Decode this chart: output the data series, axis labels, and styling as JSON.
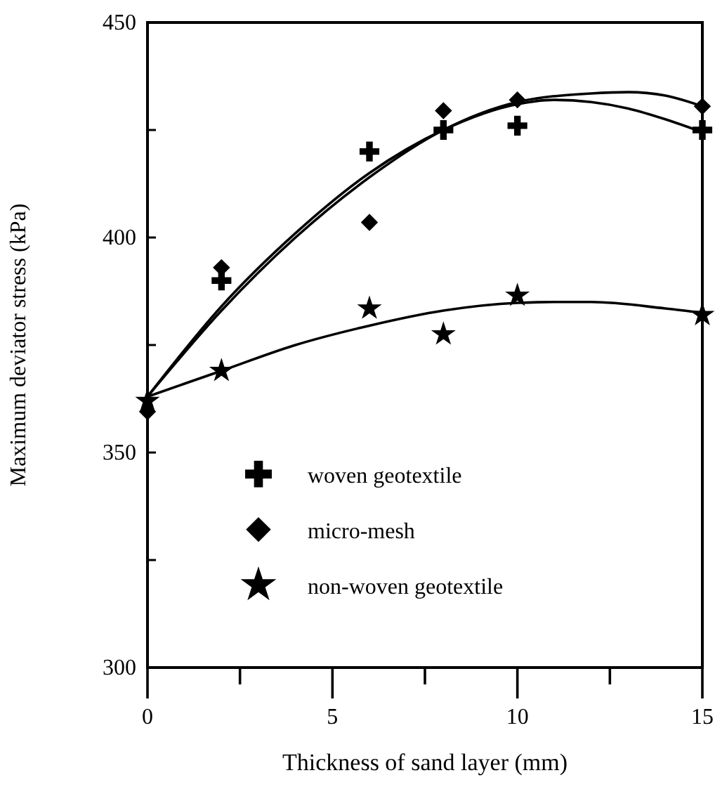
{
  "chart_data": {
    "type": "scatter",
    "xlabel": "Thickness of sand layer (mm)",
    "ylabel": "Maximum deviator stress (kPa)",
    "xlim": [
      0,
      15
    ],
    "ylim": [
      300,
      450
    ],
    "xticks": [
      0,
      {
        "value": 2.5,
        "label": null
      },
      5,
      {
        "value": 7.5,
        "label": null
      },
      10,
      {
        "value": 12.5,
        "label": null
      },
      15
    ],
    "yticks": [
      300,
      {
        "value": 325,
        "label": null
      },
      350,
      {
        "value": 375,
        "label": null
      },
      400,
      {
        "value": 425,
        "label": null
      },
      450
    ],
    "grid": false,
    "legend": "bottom",
    "series": [
      {
        "name": "woven geotextile",
        "marker": "cross",
        "color": "#000000",
        "x": [
          2,
          6,
          8,
          10,
          15
        ],
        "values": [
          390,
          420,
          425,
          426,
          425
        ]
      },
      {
        "name": "micro-mesh",
        "marker": "diamond",
        "color": "#000000",
        "x": [
          0,
          2,
          6,
          8,
          10,
          15
        ],
        "values": [
          359.5,
          393,
          403.5,
          429.5,
          432,
          430.5
        ]
      },
      {
        "name": "non-woven geotextile",
        "marker": "star",
        "color": "#000000",
        "x": [
          0,
          2,
          6,
          8,
          10,
          15
        ],
        "values": [
          362,
          369,
          383.5,
          377.5,
          386.5,
          382
        ]
      },
      {
        "type": "line",
        "marker": "none",
        "line_style": "solid",
        "color": "#000000",
        "x": [
          0,
          2,
          4,
          6,
          8,
          10,
          11,
          12,
          13,
          14,
          15
        ],
        "values": [
          363,
          384,
          401,
          415,
          425,
          431,
          432,
          431.5,
          430,
          427.5,
          424.5
        ]
      },
      {
        "type": "line",
        "marker": "none",
        "line_style": "solid",
        "color": "#000000",
        "x": [
          0,
          2,
          4,
          6,
          8,
          10,
          12,
          13,
          14,
          15
        ],
        "values": [
          363,
          383,
          400,
          414,
          425,
          431.5,
          433.5,
          433.8,
          433,
          430.5
        ]
      },
      {
        "type": "line",
        "marker": "none",
        "line_style": "solid",
        "color": "#000000",
        "x": [
          0,
          2,
          4,
          6,
          8,
          10,
          11,
          12,
          14,
          15
        ],
        "values": [
          363,
          369,
          375,
          379.5,
          383,
          384.8,
          385,
          385,
          383.5,
          382.5
        ]
      }
    ]
  }
}
